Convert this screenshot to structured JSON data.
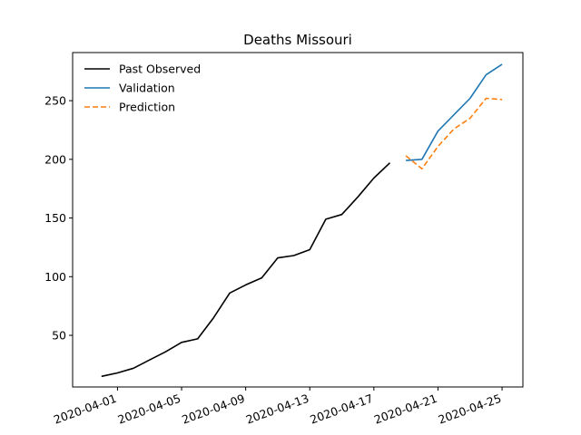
{
  "chart_data": {
    "type": "line",
    "title": "Deaths Missouri",
    "xlabel": "",
    "ylabel": "",
    "x_tick_labels": [
      "2020-04-01",
      "2020-04-05",
      "2020-04-09",
      "2020-04-13",
      "2020-04-17",
      "2020-04-21",
      "2020-04-25"
    ],
    "y_ticks": [
      50,
      100,
      150,
      200,
      250
    ],
    "xlim_day": [
      -2.8,
      25.3
    ],
    "ylim": [
      6,
      291
    ],
    "legend_position": "top-left",
    "series": [
      {
        "name": "Past Observed",
        "color": "#000000",
        "style": "solid",
        "points": [
          {
            "day": -1,
            "value": 15
          },
          {
            "day": 0,
            "value": 18
          },
          {
            "day": 1,
            "value": 22
          },
          {
            "day": 2,
            "value": 29
          },
          {
            "day": 3,
            "value": 36
          },
          {
            "day": 4,
            "value": 44
          },
          {
            "day": 5,
            "value": 47
          },
          {
            "day": 6,
            "value": 65
          },
          {
            "day": 7,
            "value": 86
          },
          {
            "day": 8,
            "value": 93
          },
          {
            "day": 9,
            "value": 99
          },
          {
            "day": 10,
            "value": 116
          },
          {
            "day": 11,
            "value": 118
          },
          {
            "day": 12,
            "value": 123
          },
          {
            "day": 13,
            "value": 149
          },
          {
            "day": 14,
            "value": 153
          },
          {
            "day": 15,
            "value": 168
          },
          {
            "day": 16,
            "value": 184
          },
          {
            "day": 17,
            "value": 197
          }
        ]
      },
      {
        "name": "Validation",
        "color": "#1f77b4",
        "style": "solid",
        "points": [
          {
            "day": 18,
            "value": 199
          },
          {
            "day": 19,
            "value": 200
          },
          {
            "day": 20,
            "value": 224
          },
          {
            "day": 21,
            "value": 238
          },
          {
            "day": 22,
            "value": 252
          },
          {
            "day": 23,
            "value": 272
          },
          {
            "day": 24,
            "value": 281
          }
        ]
      },
      {
        "name": "Prediction",
        "color": "#ff7f0e",
        "style": "dashed",
        "points": [
          {
            "day": 18,
            "value": 203
          },
          {
            "day": 19,
            "value": 192
          },
          {
            "day": 20,
            "value": 211
          },
          {
            "day": 21,
            "value": 226
          },
          {
            "day": 22,
            "value": 235
          },
          {
            "day": 23,
            "value": 252
          },
          {
            "day": 24,
            "value": 251
          }
        ]
      }
    ]
  }
}
